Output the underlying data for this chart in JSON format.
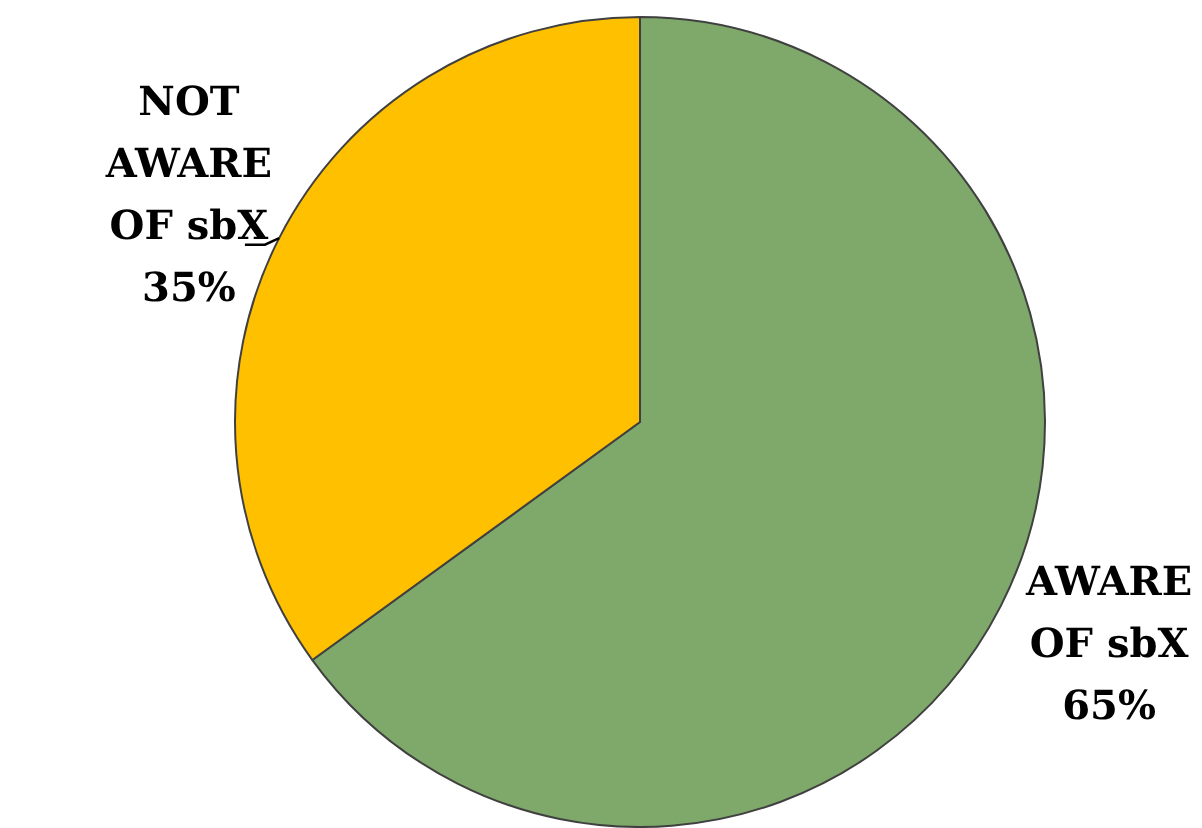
{
  "chart_data": {
    "type": "pie",
    "categories": [
      "AWARE OF sbX",
      "NOT AWARE OF sbX"
    ],
    "values": [
      65,
      35
    ],
    "colors": [
      "#7ea96a",
      "#ffc000"
    ],
    "value_labels": [
      "65%",
      "35%"
    ],
    "legend": false
  }
}
